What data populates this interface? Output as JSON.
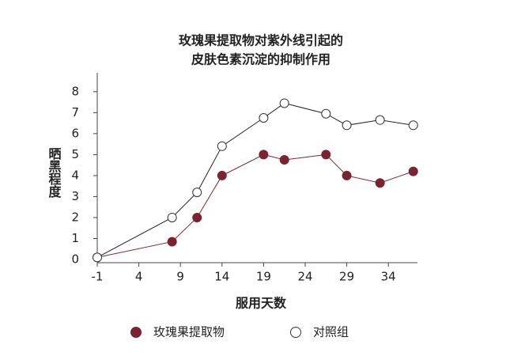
{
  "chart_data": {
    "type": "line",
    "title": [
      "玫瑰果提取物对紫外线引起的",
      "皮肤色素沉淀的抑制作用"
    ],
    "xlabel": "服用天数",
    "ylabel": "晒黑程度",
    "x": [
      -1,
      8,
      11,
      14,
      19,
      21.5,
      26.5,
      29,
      33,
      37
    ],
    "series": [
      {
        "name": "玫瑰果提取物",
        "color": "#7b2431",
        "filled": true,
        "values": [
          0.1,
          0.85,
          2,
          4,
          5,
          4.75,
          5,
          4,
          3.65,
          4.2
        ]
      },
      {
        "name": "对照组",
        "color": "#222222",
        "filled": false,
        "values": [
          0.1,
          2,
          3.2,
          5.4,
          6.75,
          7.45,
          6.95,
          6.4,
          6.65,
          6.4
        ]
      }
    ],
    "xlim": [
      -1,
      37.5
    ],
    "xticks": [
      -1,
      4,
      9,
      14,
      19,
      24,
      29,
      34
    ],
    "ylim": [
      0,
      8.9
    ],
    "yticks": [
      0,
      1,
      2,
      3,
      4,
      5,
      6,
      7,
      8
    ]
  }
}
